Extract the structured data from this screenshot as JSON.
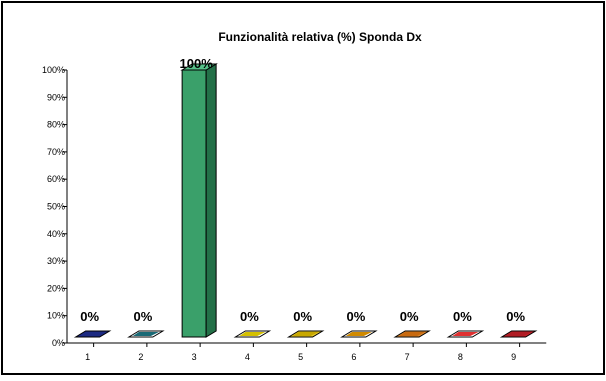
{
  "chart_data": {
    "type": "bar",
    "title": "Funzionalità relativa (%) Sponda Dx",
    "categories": [
      "1",
      "2",
      "3",
      "4",
      "5",
      "6",
      "7",
      "8",
      "9"
    ],
    "values": [
      0,
      0,
      100,
      0,
      0,
      0,
      0,
      0,
      0
    ],
    "data_labels": [
      "0%",
      "0%",
      "100%",
      "0%",
      "0%",
      "0%",
      "0%",
      "0%",
      "0%"
    ],
    "y_ticks": [
      "0%",
      "10%",
      "20%",
      "30%",
      "40%",
      "50%",
      "60%",
      "70%",
      "80%",
      "90%",
      "100%"
    ],
    "ylim": [
      0,
      100
    ],
    "grid": false,
    "legend": "none",
    "bar_colors": [
      {
        "front": "#1c2a82",
        "top": "#1c2a82",
        "side": "#0f1a5c"
      },
      {
        "front": "#1a6a76",
        "top": "#ffffff",
        "side": "#124a52"
      },
      {
        "front": "#3aa06a",
        "top": "#56c088",
        "side": "#237048"
      },
      {
        "front": "#d4c000",
        "top": "#ffffff",
        "side": "#9c8c00"
      },
      {
        "front": "#c8a800",
        "top": "#e8cc30",
        "side": "#8c7600"
      },
      {
        "front": "#d08a00",
        "top": "#ffffff",
        "side": "#9a6600"
      },
      {
        "front": "#c86a10",
        "top": "#e08a30",
        "side": "#8e4a0a"
      },
      {
        "front": "#e03030",
        "top": "#ffffff",
        "side": "#a01e1e"
      },
      {
        "front": "#b01c24",
        "top": "#c8242c",
        "side": "#7c1218"
      }
    ]
  }
}
